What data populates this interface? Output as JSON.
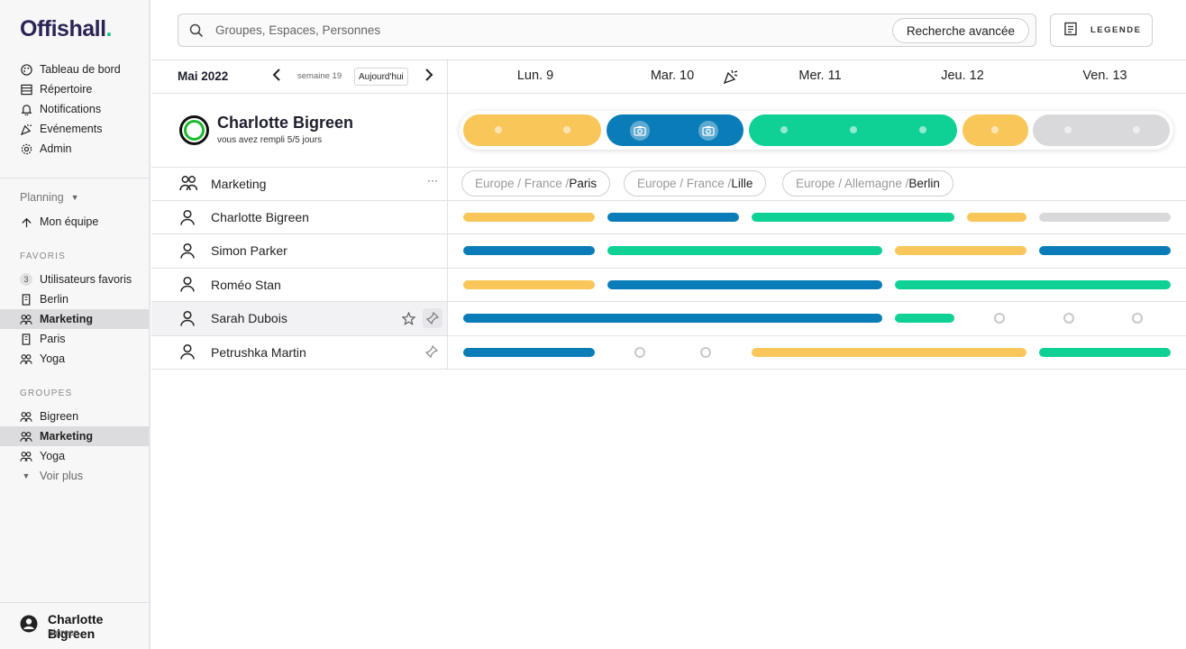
{
  "app": {
    "logo": "Offishall",
    "logo_dot": "."
  },
  "sidebar": {
    "nav": [
      {
        "label": "Tableau de bord",
        "icon": "palette-icon"
      },
      {
        "label": "Répertoire",
        "icon": "list-icon"
      },
      {
        "label": "Notifications",
        "icon": "bell-icon"
      },
      {
        "label": "Evénements",
        "icon": "party-icon"
      },
      {
        "label": "Admin",
        "icon": "gear-icon"
      }
    ],
    "planning_label": "Planning",
    "my_team": "Mon équipe",
    "favorites_title": "FAVORIS",
    "favorites": [
      {
        "label": "Utilisateurs favoris",
        "badge": "3"
      },
      {
        "label": "Berlin"
      },
      {
        "label": "Marketing"
      },
      {
        "label": "Paris"
      },
      {
        "label": "Yoga"
      }
    ],
    "groups_title": "GROUPES",
    "groups": [
      {
        "label": "Bigreen"
      },
      {
        "label": "Marketing"
      },
      {
        "label": "Yoga"
      }
    ],
    "see_more": "Voir plus",
    "user": {
      "name": "Charlotte Bigreen",
      "org": "Bigreen"
    }
  },
  "search": {
    "placeholder": "Groupes, Espaces, Personnes",
    "advanced": "Recherche avancée"
  },
  "legend_button": "LEGENDE",
  "calendar": {
    "month": "Mai 2022",
    "week": "semaine 19",
    "today": "Aujourd'hui",
    "days": [
      "Lun. 9",
      "Mar. 10",
      "Mer. 11",
      "Jeu. 12",
      "Ven. 13"
    ]
  },
  "profile": {
    "name": "Charlotte Bigreen",
    "subtitle": "vous avez rempli 5/5 jours"
  },
  "group_row": {
    "name": "Marketing",
    "more": "···",
    "locations": [
      {
        "path": "Europe / France / ",
        "city": "Paris"
      },
      {
        "path": "Europe / France / ",
        "city": "Lille"
      },
      {
        "path": "Europe / Allemagne / ",
        "city": "Berlin"
      }
    ]
  },
  "members": [
    {
      "name": "Charlotte Bigreen"
    },
    {
      "name": "Simon Parker"
    },
    {
      "name": "Roméo Stan"
    },
    {
      "name": "Sarah Dubois"
    },
    {
      "name": "Petrushka Martin"
    }
  ],
  "colors": {
    "yellow": "#f9c65a",
    "blue": "#0a7db8",
    "green": "#0fd196",
    "grey": "#d9d9db",
    "accent": "#17c48c"
  }
}
